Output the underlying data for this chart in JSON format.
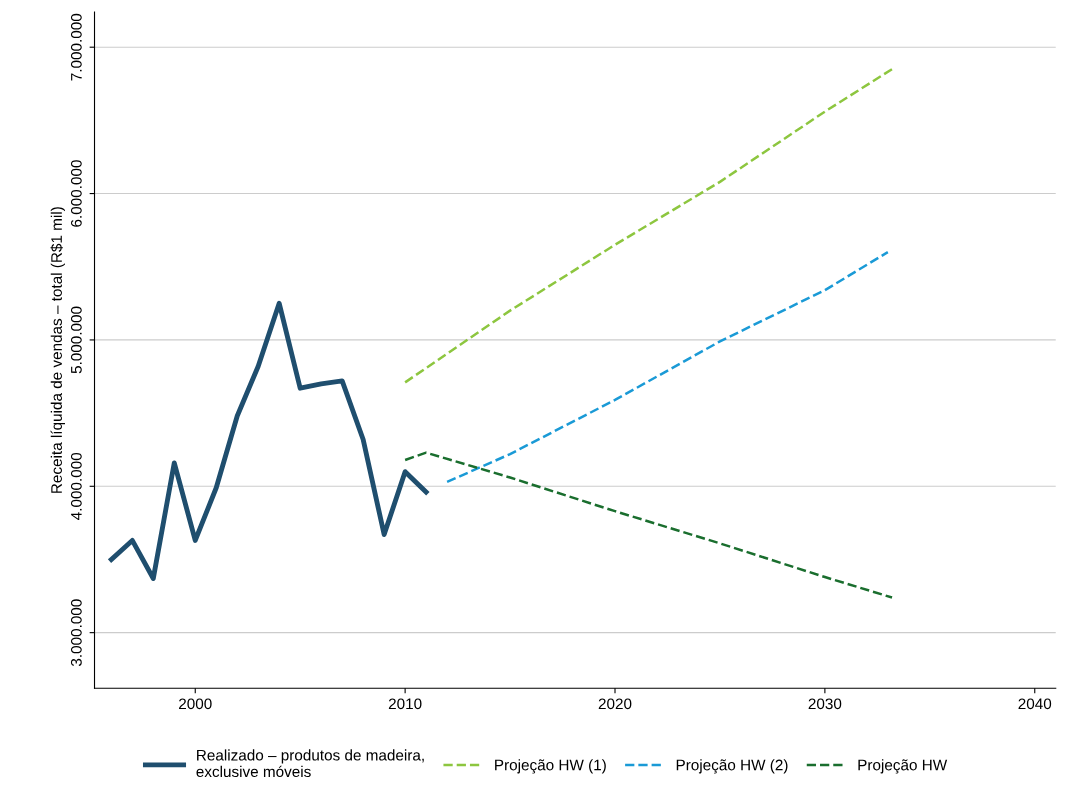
{
  "chart_data": {
    "type": "line",
    "ylabel": "Receita líquida de vendas – total (R$1 mil)",
    "series": [
      {
        "name": "Realizado – produtos de madeira,\nexclusive móveis",
        "color": "#1f4e6e",
        "line_style": "solid",
        "x": [
          1996,
          1997,
          1998,
          1999,
          2000,
          2001,
          2002,
          2003,
          2004,
          2005,
          2006,
          2007,
          2008,
          2009,
          2010,
          2011
        ],
        "values": [
          3500000,
          3630000,
          3370000,
          4160000,
          3630000,
          3990000,
          4480000,
          4820000,
          5250000,
          4670000,
          4700000,
          4720000,
          4320000,
          3670000,
          4100000,
          3960000
        ]
      },
      {
        "name": "Projeção HW (1)",
        "color": "#8dc63f",
        "line_style": "dashed",
        "x": [
          2010,
          2015,
          2020,
          2025,
          2030,
          2033.2
        ],
        "values": [
          4710000,
          5200000,
          5650000,
          6080000,
          6560000,
          6850000
        ]
      },
      {
        "name": "Projeção HW (2)",
        "color": "#1a9ad6",
        "line_style": "dashed",
        "x": [
          2012,
          2015,
          2020,
          2025,
          2030,
          2033
        ],
        "values": [
          4030000,
          4220000,
          4590000,
          4990000,
          5340000,
          5600000
        ]
      },
      {
        "name": "Projeção HW",
        "color": "#1a6e2e",
        "line_style": "dashed",
        "x": [
          2010,
          2011,
          2015,
          2020,
          2025,
          2030,
          2033.2
        ],
        "values": [
          4180000,
          4230000,
          4060000,
          3830000,
          3610000,
          3380000,
          3240000
        ]
      }
    ],
    "xlim": [
      1995.2,
      2041
    ],
    "xticks": [
      2000,
      2010,
      2020,
      2030,
      2040
    ],
    "ylim": [
      2620000,
      7240000
    ],
    "yticks": [
      {
        "value": 3000000,
        "label": "3.000.000"
      },
      {
        "value": 4000000,
        "label": "4.000.000"
      },
      {
        "value": 5000000,
        "label": "5.000.000"
      },
      {
        "value": 6000000,
        "label": "6.000.000"
      },
      {
        "value": 7000000,
        "label": "7.000.000"
      }
    ],
    "grid": "y",
    "legend": "bottom",
    "marker": "none"
  }
}
